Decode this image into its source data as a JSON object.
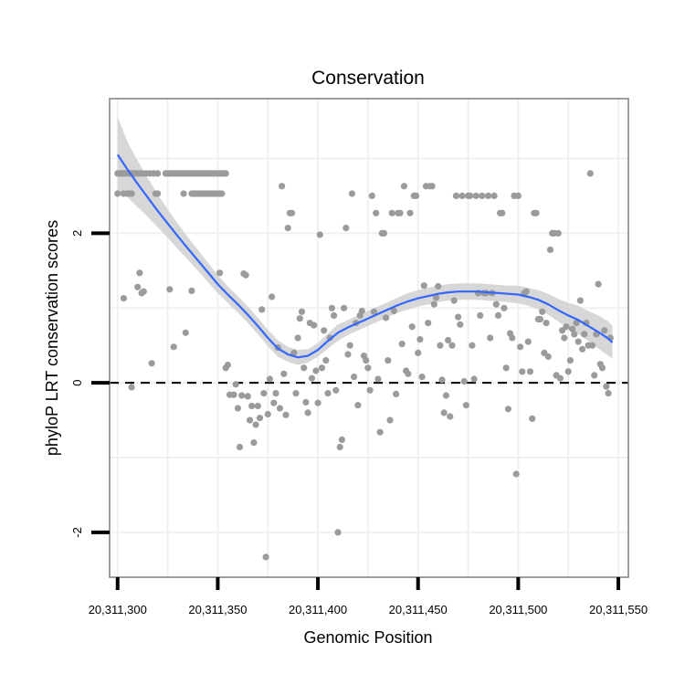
{
  "chart_data": {
    "type": "scatter",
    "title": "Conservation",
    "xlabel": "Genomic Position",
    "ylabel": "phyloP LRT conservation scores",
    "xlim": [
      20311296,
      20311555
    ],
    "ylim": [
      -2.6,
      3.8
    ],
    "xticks": [
      20311300,
      20311350,
      20311400,
      20311450,
      20311500,
      20311550
    ],
    "xtick_labels": [
      "20,311,300",
      "20,311,350",
      "20,311,400",
      "20,311,450",
      "20,311,500",
      "20,311,550"
    ],
    "yticks": [
      -2,
      0,
      2
    ],
    "ytick_labels": [
      "-2",
      "0",
      "2"
    ],
    "reference_line": {
      "y": 0,
      "style": "dashed"
    },
    "point_color": "#9b9b9b",
    "smooth_color": "#3366ff",
    "band_color": "#d3d3d3",
    "points": [
      [
        20311300,
        2.8
      ],
      [
        20311301,
        2.8
      ],
      [
        20311302,
        2.8
      ],
      [
        20311303,
        2.8
      ],
      [
        20311304,
        2.8
      ],
      [
        20311305,
        2.8
      ],
      [
        20311306,
        2.8
      ],
      [
        20311307,
        2.8
      ],
      [
        20311308,
        2.8
      ],
      [
        20311309,
        2.8
      ],
      [
        20311310,
        2.8
      ],
      [
        20311311,
        2.8
      ],
      [
        20311312,
        2.8
      ],
      [
        20311314,
        2.8
      ],
      [
        20311316,
        2.8
      ],
      [
        20311318,
        2.8
      ],
      [
        20311320,
        2.8
      ],
      [
        20311324,
        2.8
      ],
      [
        20311325,
        2.8
      ],
      [
        20311326,
        2.8
      ],
      [
        20311327,
        2.8
      ],
      [
        20311328,
        2.8
      ],
      [
        20311329,
        2.8
      ],
      [
        20311330,
        2.8
      ],
      [
        20311331,
        2.8
      ],
      [
        20311332,
        2.8
      ],
      [
        20311333,
        2.8
      ],
      [
        20311334,
        2.8
      ],
      [
        20311335,
        2.8
      ],
      [
        20311336,
        2.8
      ],
      [
        20311337,
        2.8
      ],
      [
        20311338,
        2.8
      ],
      [
        20311339,
        2.8
      ],
      [
        20311340,
        2.8
      ],
      [
        20311341,
        2.8
      ],
      [
        20311342,
        2.8
      ],
      [
        20311343,
        2.8
      ],
      [
        20311344,
        2.8
      ],
      [
        20311345,
        2.8
      ],
      [
        20311346,
        2.8
      ],
      [
        20311347,
        2.8
      ],
      [
        20311348,
        2.8
      ],
      [
        20311349,
        2.8
      ],
      [
        20311350,
        2.8
      ],
      [
        20311351,
        2.8
      ],
      [
        20311352,
        2.8
      ],
      [
        20311353,
        2.8
      ],
      [
        20311354,
        2.8
      ],
      [
        20311300,
        2.53
      ],
      [
        20311303,
        2.53
      ],
      [
        20311305,
        2.53
      ],
      [
        20311306,
        2.53
      ],
      [
        20311307,
        2.53
      ],
      [
        20311319,
        2.53
      ],
      [
        20311320,
        2.53
      ],
      [
        20311333,
        2.53
      ],
      [
        20311337,
        2.53
      ],
      [
        20311338,
        2.53
      ],
      [
        20311339,
        2.53
      ],
      [
        20311340,
        2.53
      ],
      [
        20311341,
        2.53
      ],
      [
        20311342,
        2.53
      ],
      [
        20311343,
        2.53
      ],
      [
        20311344,
        2.53
      ],
      [
        20311345,
        2.53
      ],
      [
        20311346,
        2.53
      ],
      [
        20311347,
        2.53
      ],
      [
        20311348,
        2.53
      ],
      [
        20311349,
        2.53
      ],
      [
        20311350,
        2.53
      ],
      [
        20311351,
        2.53
      ],
      [
        20311352,
        2.53
      ],
      [
        20311303,
        1.13
      ],
      [
        20311307,
        -0.06
      ],
      [
        20311310,
        1.28
      ],
      [
        20311311,
        1.47
      ],
      [
        20311312,
        1.2
      ],
      [
        20311313,
        1.22
      ],
      [
        20311317,
        0.26
      ],
      [
        20311326,
        1.25
      ],
      [
        20311328,
        0.48
      ],
      [
        20311334,
        0.67
      ],
      [
        20311337,
        1.23
      ],
      [
        20311351,
        1.47
      ],
      [
        20311354,
        0.2
      ],
      [
        20311355,
        0.24
      ],
      [
        20311356,
        -0.16
      ],
      [
        20311358,
        -0.16
      ],
      [
        20311359,
        -0.02
      ],
      [
        20311360,
        -0.34
      ],
      [
        20311361,
        -0.86
      ],
      [
        20311362,
        -0.17
      ],
      [
        20311363,
        1.46
      ],
      [
        20311364,
        1.44
      ],
      [
        20311365,
        -0.18
      ],
      [
        20311366,
        -0.5
      ],
      [
        20311367,
        -0.31
      ],
      [
        20311368,
        -0.8
      ],
      [
        20311369,
        -0.56
      ],
      [
        20311370,
        -0.31
      ],
      [
        20311371,
        -0.47
      ],
      [
        20311372,
        0.98
      ],
      [
        20311373,
        -0.14
      ],
      [
        20311374,
        -2.33
      ],
      [
        20311375,
        -0.42
      ],
      [
        20311376,
        0.05
      ],
      [
        20311377,
        1.15
      ],
      [
        20311378,
        -0.27
      ],
      [
        20311379,
        -0.14
      ],
      [
        20311380,
        0.47
      ],
      [
        20311381,
        -0.34
      ],
      [
        20311382,
        2.63
      ],
      [
        20311383,
        0.12
      ],
      [
        20311384,
        -0.43
      ],
      [
        20311385,
        2.07
      ],
      [
        20311386,
        2.27
      ],
      [
        20311387,
        2.27
      ],
      [
        20311388,
        0.4
      ],
      [
        20311389,
        -0.14
      ],
      [
        20311390,
        0.6
      ],
      [
        20311391,
        0.86
      ],
      [
        20311392,
        0.95
      ],
      [
        20311393,
        0.2
      ],
      [
        20311394,
        -0.26
      ],
      [
        20311395,
        -0.4
      ],
      [
        20311396,
        0.8
      ],
      [
        20311397,
        0.06
      ],
      [
        20311398,
        0.77
      ],
      [
        20311399,
        0.16
      ],
      [
        20311400,
        -0.27
      ],
      [
        20311401,
        1.98
      ],
      [
        20311402,
        0.2
      ],
      [
        20311403,
        0.7
      ],
      [
        20311404,
        0.3
      ],
      [
        20311405,
        -0.14
      ],
      [
        20311406,
        0.6
      ],
      [
        20311407,
        1.0
      ],
      [
        20311408,
        0.9
      ],
      [
        20311409,
        -0.1
      ],
      [
        20311410,
        -2.0
      ],
      [
        20311411,
        -0.86
      ],
      [
        20311412,
        -0.76
      ],
      [
        20311413,
        1.0
      ],
      [
        20311414,
        2.07
      ],
      [
        20311415,
        0.38
      ],
      [
        20311416,
        0.5
      ],
      [
        20311417,
        2.53
      ],
      [
        20311418,
        0.08
      ],
      [
        20311419,
        0.8
      ],
      [
        20311420,
        -0.3
      ],
      [
        20311421,
        0.9
      ],
      [
        20311422,
        0.96
      ],
      [
        20311423,
        0.36
      ],
      [
        20311424,
        0.3
      ],
      [
        20311425,
        0.2
      ],
      [
        20311426,
        -0.1
      ],
      [
        20311427,
        2.5
      ],
      [
        20311428,
        0.95
      ],
      [
        20311429,
        2.27
      ],
      [
        20311430,
        0.05
      ],
      [
        20311431,
        -0.66
      ],
      [
        20311432,
        2.0
      ],
      [
        20311433,
        2.0
      ],
      [
        20311434,
        0.87
      ],
      [
        20311435,
        0.3
      ],
      [
        20311436,
        -0.5
      ],
      [
        20311437,
        2.27
      ],
      [
        20311438,
        0.96
      ],
      [
        20311439,
        -0.15
      ],
      [
        20311440,
        2.27
      ],
      [
        20311441,
        2.27
      ],
      [
        20311442,
        0.52
      ],
      [
        20311443,
        2.63
      ],
      [
        20311444,
        0.16
      ],
      [
        20311445,
        0.12
      ],
      [
        20311446,
        2.27
      ],
      [
        20311447,
        0.75
      ],
      [
        20311448,
        2.5
      ],
      [
        20311449,
        2.5
      ],
      [
        20311450,
        0.4
      ],
      [
        20311451,
        0.58
      ],
      [
        20311452,
        0.08
      ],
      [
        20311453,
        1.3
      ],
      [
        20311454,
        2.63
      ],
      [
        20311455,
        0.8
      ],
      [
        20311456,
        2.63
      ],
      [
        20311457,
        2.63
      ],
      [
        20311458,
        1.05
      ],
      [
        20311459,
        1.14
      ],
      [
        20311460,
        1.29
      ],
      [
        20311461,
        0.5
      ],
      [
        20311462,
        0.04
      ],
      [
        20311463,
        -0.4
      ],
      [
        20311464,
        -0.17
      ],
      [
        20311465,
        0.57
      ],
      [
        20311466,
        -0.45
      ],
      [
        20311467,
        0.5
      ],
      [
        20311468,
        1.1
      ],
      [
        20311469,
        2.5
      ],
      [
        20311470,
        0.88
      ],
      [
        20311471,
        0.78
      ],
      [
        20311472,
        2.5
      ],
      [
        20311473,
        0.02
      ],
      [
        20311474,
        -0.3
      ],
      [
        20311475,
        2.5
      ],
      [
        20311476,
        2.5
      ],
      [
        20311477,
        0.5
      ],
      [
        20311478,
        0.05
      ],
      [
        20311479,
        2.5
      ],
      [
        20311480,
        1.2
      ],
      [
        20311481,
        0.9
      ],
      [
        20311482,
        2.5
      ],
      [
        20311483,
        1.2
      ],
      [
        20311484,
        1.2
      ],
      [
        20311485,
        2.5
      ],
      [
        20311486,
        0.6
      ],
      [
        20311487,
        1.2
      ],
      [
        20311488,
        2.5
      ],
      [
        20311489,
        1.05
      ],
      [
        20311490,
        0.9
      ],
      [
        20311491,
        2.27
      ],
      [
        20311492,
        2.27
      ],
      [
        20311493,
        1.0
      ],
      [
        20311494,
        0.2
      ],
      [
        20311495,
        -0.35
      ],
      [
        20311496,
        0.66
      ],
      [
        20311497,
        0.6
      ],
      [
        20311498,
        2.5
      ],
      [
        20311499,
        -1.22
      ],
      [
        20311500,
        2.5
      ],
      [
        20311501,
        0.48
      ],
      [
        20311502,
        0.15
      ],
      [
        20311503,
        1.2
      ],
      [
        20311504,
        1.22
      ],
      [
        20311505,
        0.55
      ],
      [
        20311506,
        0.15
      ],
      [
        20311507,
        -0.48
      ],
      [
        20311508,
        2.27
      ],
      [
        20311509,
        2.27
      ],
      [
        20311510,
        0.85
      ],
      [
        20311511,
        0.85
      ],
      [
        20311512,
        0.95
      ],
      [
        20311513,
        0.4
      ],
      [
        20311514,
        0.8
      ],
      [
        20311515,
        0.35
      ],
      [
        20311516,
        1.78
      ],
      [
        20311517,
        2.0
      ],
      [
        20311518,
        2.0
      ],
      [
        20311519,
        0.1
      ],
      [
        20311520,
        2.0
      ],
      [
        20311521,
        0.06
      ],
      [
        20311522,
        0.7
      ],
      [
        20311523,
        0.6
      ],
      [
        20311524,
        0.75
      ],
      [
        20311525,
        0.15
      ],
      [
        20311526,
        0.3
      ],
      [
        20311527,
        0.72
      ],
      [
        20311528,
        0.65
      ],
      [
        20311529,
        0.8
      ],
      [
        20311530,
        0.55
      ],
      [
        20311531,
        1.1
      ],
      [
        20311532,
        0.45
      ],
      [
        20311533,
        0.65
      ],
      [
        20311534,
        0.8
      ],
      [
        20311535,
        0.5
      ],
      [
        20311536,
        2.8
      ],
      [
        20311537,
        0.5
      ],
      [
        20311538,
        0.1
      ],
      [
        20311539,
        0.65
      ],
      [
        20311540,
        1.32
      ],
      [
        20311541,
        0.25
      ],
      [
        20311542,
        0.2
      ],
      [
        20311543,
        0.7
      ],
      [
        20311544,
        -0.05
      ],
      [
        20311545,
        -0.14
      ],
      [
        20311546,
        0.6
      ]
    ],
    "smooth": {
      "x": [
        20311300,
        20311305,
        20311310,
        20311315,
        20311320,
        20311325,
        20311330,
        20311335,
        20311340,
        20311345,
        20311350,
        20311355,
        20311360,
        20311365,
        20311370,
        20311375,
        20311380,
        20311385,
        20311390,
        20311395,
        20311400,
        20311405,
        20311410,
        20311415,
        20311420,
        20311425,
        20311430,
        20311435,
        20311440,
        20311445,
        20311450,
        20311455,
        20311460,
        20311465,
        20311470,
        20311475,
        20311480,
        20311485,
        20311490,
        20311495,
        20311500,
        20311505,
        20311510,
        20311515,
        20311520,
        20311525,
        20311530,
        20311535,
        20311540,
        20311545,
        20311547
      ],
      "fit": [
        3.05,
        2.85,
        2.66,
        2.48,
        2.3,
        2.13,
        1.96,
        1.8,
        1.64,
        1.48,
        1.32,
        1.18,
        1.05,
        0.91,
        0.76,
        0.6,
        0.46,
        0.38,
        0.34,
        0.36,
        0.44,
        0.56,
        0.67,
        0.74,
        0.8,
        0.86,
        0.92,
        0.98,
        1.04,
        1.09,
        1.13,
        1.16,
        1.19,
        1.21,
        1.22,
        1.22,
        1.22,
        1.21,
        1.2,
        1.19,
        1.18,
        1.15,
        1.11,
        1.05,
        0.97,
        0.9,
        0.84,
        0.76,
        0.68,
        0.59,
        0.54
      ],
      "lower": [
        2.55,
        2.48,
        2.35,
        2.22,
        2.08,
        1.94,
        1.79,
        1.65,
        1.5,
        1.35,
        1.2,
        1.07,
        0.94,
        0.8,
        0.65,
        0.49,
        0.35,
        0.28,
        0.24,
        0.27,
        0.35,
        0.46,
        0.56,
        0.64,
        0.7,
        0.76,
        0.82,
        0.88,
        0.94,
        0.98,
        1.02,
        1.05,
        1.08,
        1.1,
        1.11,
        1.11,
        1.11,
        1.1,
        1.09,
        1.08,
        1.06,
        1.03,
        0.98,
        0.91,
        0.82,
        0.73,
        0.65,
        0.56,
        0.46,
        0.36,
        0.32
      ],
      "upper": [
        3.55,
        3.22,
        2.97,
        2.74,
        2.52,
        2.32,
        2.13,
        1.95,
        1.78,
        1.61,
        1.44,
        1.29,
        1.16,
        1.02,
        0.87,
        0.71,
        0.57,
        0.48,
        0.44,
        0.45,
        0.53,
        0.66,
        0.78,
        0.84,
        0.9,
        0.96,
        1.02,
        1.08,
        1.14,
        1.2,
        1.24,
        1.27,
        1.3,
        1.32,
        1.33,
        1.33,
        1.33,
        1.32,
        1.31,
        1.3,
        1.3,
        1.27,
        1.24,
        1.19,
        1.12,
        1.07,
        1.03,
        0.96,
        0.9,
        0.82,
        0.76
      ]
    }
  }
}
